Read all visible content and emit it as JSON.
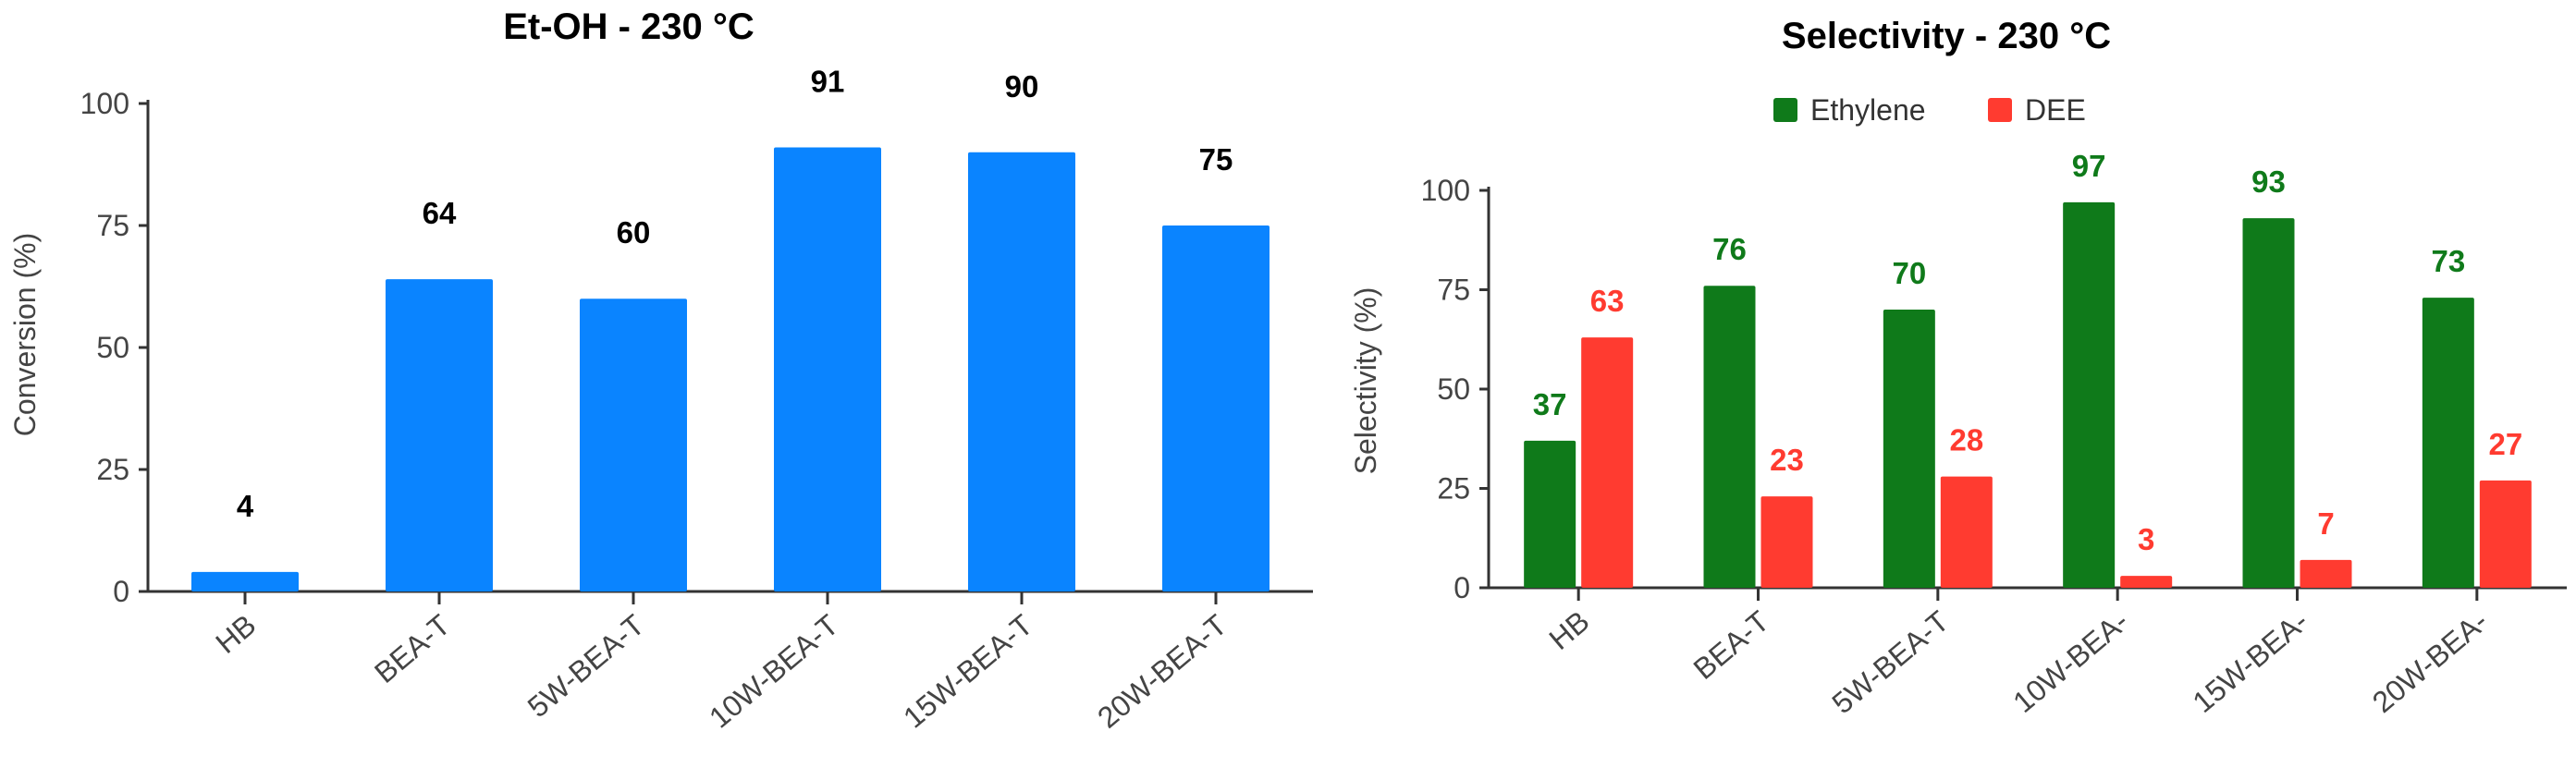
{
  "colors": {
    "conversion": "#0a84ff",
    "ethylene": "#0f7a1a",
    "dee": "#ff3b30",
    "axis": "#333333"
  },
  "chart_data": [
    {
      "type": "bar",
      "title": "Et-OH - 230 °C",
      "xlabel": "",
      "ylabel": "Conversion (%)",
      "ylim": [
        0,
        100
      ],
      "yticks": [
        0,
        25,
        50,
        75,
        100
      ],
      "categories": [
        "HB",
        "BEA-T",
        "5W-BEA-T",
        "10W-BEA-T",
        "15W-BEA-T",
        "20W-BEA-T"
      ],
      "series": [
        {
          "values": [
            4,
            64,
            60,
            91,
            90,
            75
          ],
          "labels": [
            "4",
            "64",
            "60",
            "91",
            "90",
            "75"
          ]
        }
      ],
      "grid": false,
      "legend": "none"
    },
    {
      "type": "bar",
      "title": "Selectivity - 230 °C",
      "xlabel": "",
      "ylabel": "Selectivity (%)",
      "ylim": [
        0,
        100
      ],
      "yticks": [
        0,
        25,
        50,
        75,
        100
      ],
      "categories": [
        "HB",
        "BEA-T",
        "5W-BEA-T",
        "10W-BEA-",
        "15W-BEA-",
        "20W-BEA-"
      ],
      "series": [
        {
          "name": "Ethylene",
          "values": [
            37,
            76,
            70,
            97,
            93,
            73
          ],
          "labels": [
            "37",
            "76",
            "70",
            "97",
            "93",
            "73"
          ]
        },
        {
          "name": "DEE",
          "values": [
            63,
            23,
            28,
            3,
            7,
            27
          ],
          "labels": [
            "63",
            "23",
            "28",
            "3",
            "7",
            "27"
          ]
        }
      ],
      "grid": false,
      "legend": "top-center"
    }
  ]
}
